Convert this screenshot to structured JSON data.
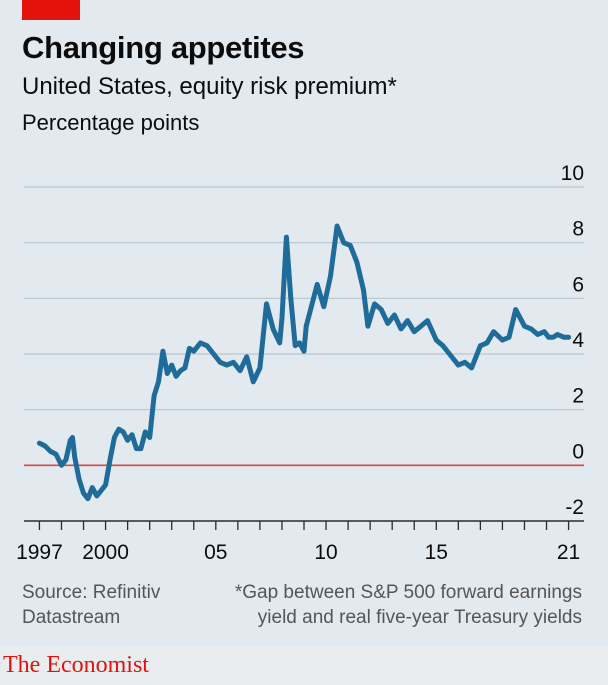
{
  "header": {
    "title": "Changing appetites",
    "subtitle": "United States, equity risk premium*",
    "unit": "Percentage points"
  },
  "footer": {
    "source_line1": "Source: Refinitiv",
    "source_line2": "Datastream",
    "note_line1": "*Gap between S&P 500 forward earnings",
    "note_line2": "yield and real five-year Treasury yields",
    "brand": "The Economist"
  },
  "colors": {
    "line": "#1f6c9b",
    "zero_line": "#db444b",
    "grid": "#b7c6cf",
    "accent": "#e3120b"
  },
  "chart_data": {
    "type": "line",
    "title": "Changing appetites",
    "subtitle": "United States, equity risk premium*",
    "ylabel": "Percentage points",
    "xlim": [
      1996.3,
      2021.7
    ],
    "ylim": [
      -2,
      10
    ],
    "yticks": [
      -2,
      0,
      2,
      4,
      6,
      8,
      10
    ],
    "xticks": [
      {
        "value": 1997,
        "label": "1997"
      },
      {
        "value": 2000,
        "label": "2000"
      },
      {
        "value": 2005,
        "label": "05"
      },
      {
        "value": 2010,
        "label": "10"
      },
      {
        "value": 2015,
        "label": "15"
      },
      {
        "value": 2021,
        "label": "21"
      }
    ],
    "series": [
      {
        "x": [
          1997.0,
          1997.25,
          1997.5,
          1997.75,
          1998.0,
          1998.2,
          1998.4,
          1998.5,
          1998.6,
          1998.8,
          1999.0,
          1999.2,
          1999.4,
          1999.6,
          1999.8,
          2000.0,
          2000.2,
          2000.4,
          2000.6,
          2000.8,
          2001.0,
          2001.2,
          2001.4,
          2001.6,
          2001.8,
          2002.0,
          2002.2,
          2002.4,
          2002.6,
          2002.8,
          2003.0,
          2003.2,
          2003.4,
          2003.6,
          2003.8,
          2004.0,
          2004.3,
          2004.6,
          2004.9,
          2005.2,
          2005.5,
          2005.8,
          2006.1,
          2006.4,
          2006.7,
          2007.0,
          2007.3,
          2007.6,
          2007.9,
          2008.0,
          2008.2,
          2008.4,
          2008.6,
          2008.8,
          2009.0,
          2009.1,
          2009.3,
          2009.6,
          2009.9,
          2010.2,
          2010.5,
          2010.8,
          2011.1,
          2011.4,
          2011.7,
          2011.9,
          2012.2,
          2012.5,
          2012.8,
          2013.1,
          2013.4,
          2013.7,
          2014.0,
          2014.3,
          2014.6,
          2015.0,
          2015.3,
          2015.6,
          2016.0,
          2016.3,
          2016.6,
          2017.0,
          2017.3,
          2017.6,
          2018.0,
          2018.3,
          2018.6,
          2019.0,
          2019.3,
          2019.6,
          2019.9,
          2020.1,
          2020.3,
          2020.5,
          2020.8,
          2021.0
        ],
        "y": [
          0.8,
          0.7,
          0.5,
          0.4,
          0.0,
          0.2,
          0.9,
          1.0,
          0.3,
          -0.5,
          -1.0,
          -1.2,
          -0.8,
          -1.1,
          -0.9,
          -0.7,
          0.2,
          1.0,
          1.3,
          1.2,
          0.9,
          1.1,
          0.6,
          0.6,
          1.2,
          1.0,
          2.5,
          3.0,
          4.1,
          3.3,
          3.6,
          3.2,
          3.4,
          3.5,
          4.2,
          4.1,
          4.4,
          4.3,
          4.0,
          3.7,
          3.6,
          3.7,
          3.4,
          3.9,
          3.0,
          3.5,
          5.8,
          4.9,
          4.4,
          5.3,
          8.2,
          6.0,
          4.3,
          4.4,
          4.1,
          5.0,
          5.6,
          6.5,
          5.7,
          6.8,
          8.6,
          8.0,
          7.9,
          7.3,
          6.3,
          5.0,
          5.8,
          5.6,
          5.1,
          5.4,
          4.9,
          5.2,
          4.8,
          5.0,
          5.2,
          4.5,
          4.3,
          4.0,
          3.6,
          3.7,
          3.5,
          4.3,
          4.4,
          4.8,
          4.5,
          4.6,
          5.6,
          5.0,
          4.9,
          4.7,
          4.8,
          4.6,
          4.6,
          4.7,
          4.6,
          4.6
        ]
      }
    ]
  }
}
